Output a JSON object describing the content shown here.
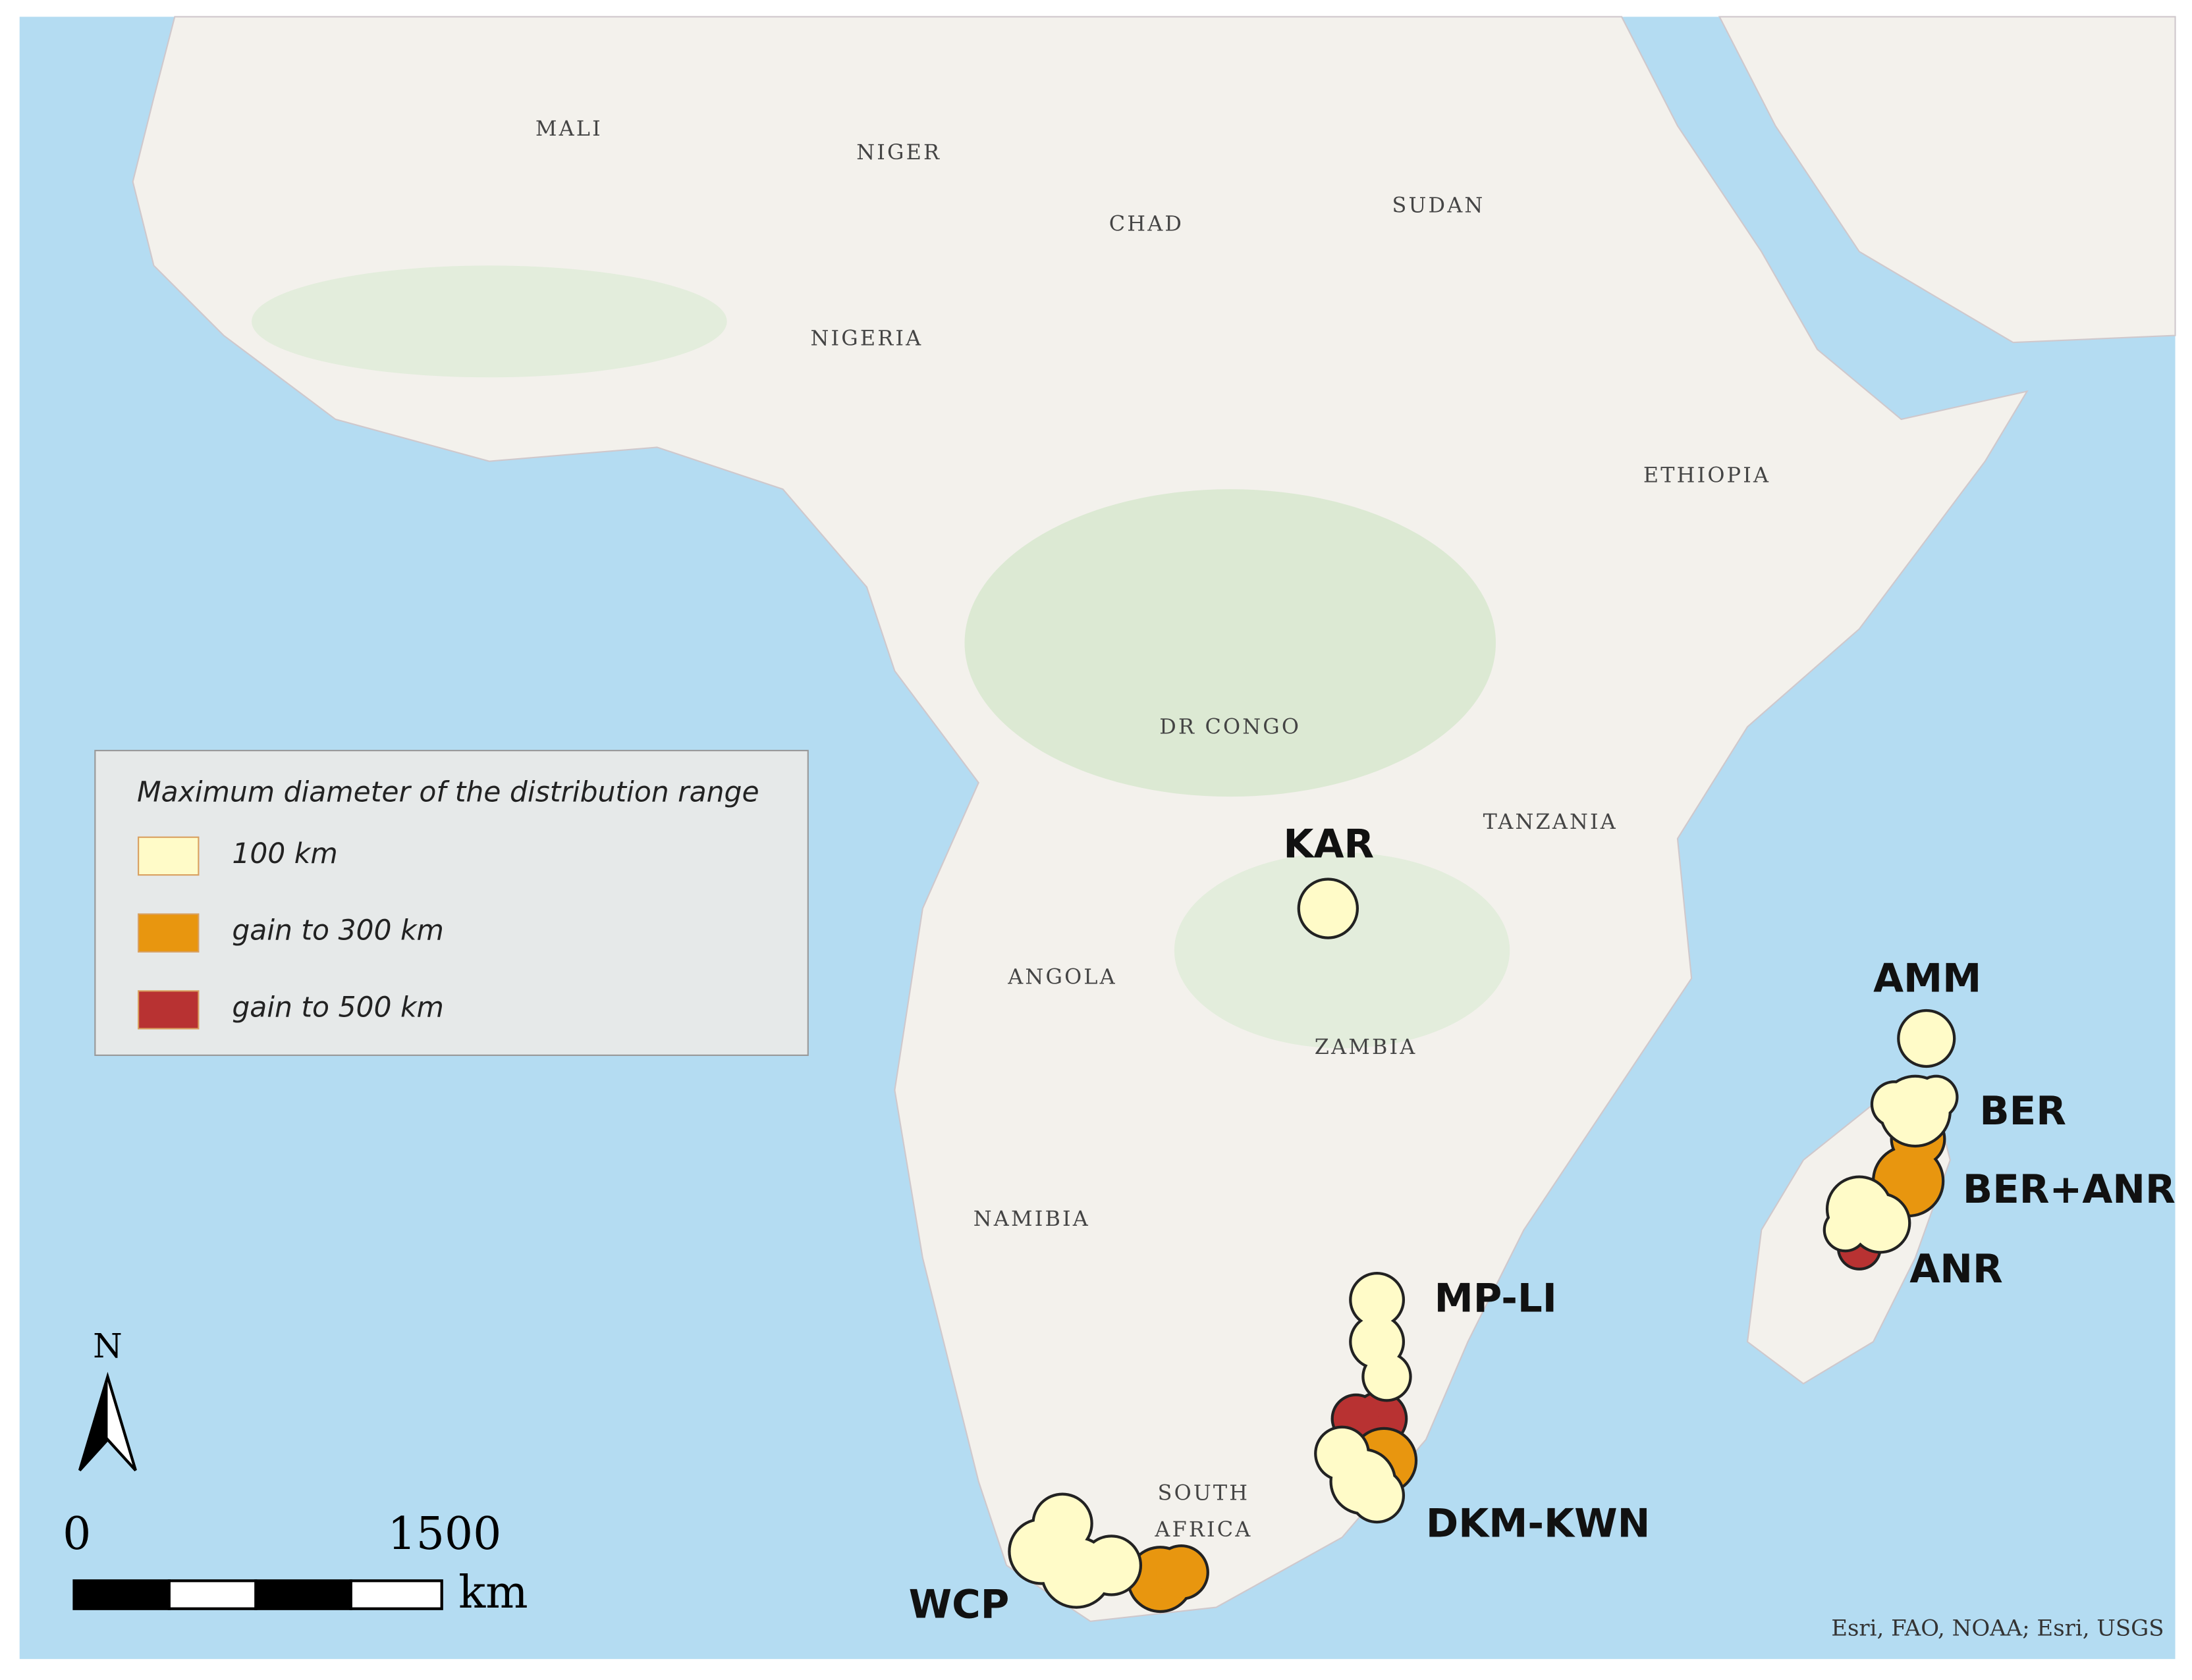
{
  "map": {
    "countries": [
      "MALI",
      "NIGER",
      "CHAD",
      "SUDAN",
      "NIGERIA",
      "ETHIOPIA",
      "DR CONGO",
      "TANZANIA",
      "ANGOLA",
      "ZAMBIA",
      "NAMIBIA",
      "SOUTH AFRICA"
    ],
    "sites": [
      "KAR",
      "AMM",
      "BER",
      "BER+ANR",
      "ANR",
      "MP-LI",
      "DKM-KWN",
      "WCP"
    ],
    "legend": {
      "title": "Maximum diameter of the distribution range",
      "items": [
        {
          "label": "100 km",
          "color": "#fffbc8"
        },
        {
          "label": "gain to 300 km",
          "color": "#e8960f"
        },
        {
          "label": "gain to 500 km",
          "color": "#b83232"
        }
      ]
    },
    "scale": {
      "start": 0,
      "end": 1500,
      "unit": "km"
    },
    "north": "N",
    "attribution": "Esri, FAO, NOAA; Esri, USGS"
  }
}
